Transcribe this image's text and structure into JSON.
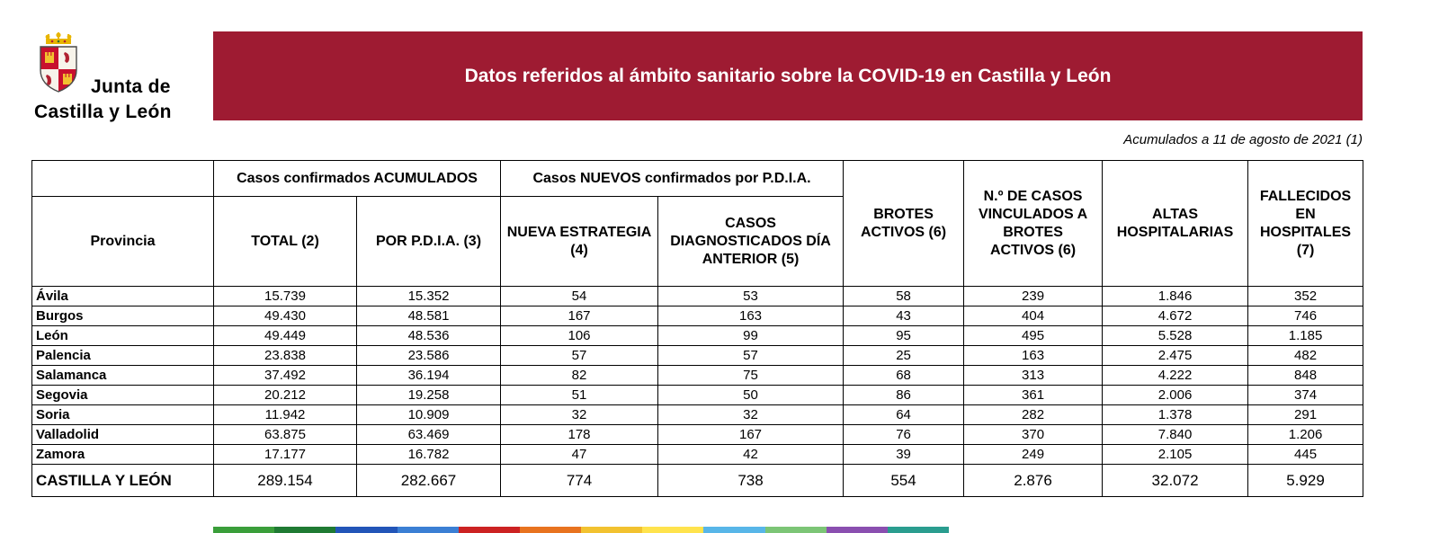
{
  "logo": {
    "line1": "Junta de",
    "line2": "Castilla y León"
  },
  "banner": {
    "title": "Datos referidos al ámbito sanitario sobre la COVID-19 en Castilla y León",
    "bg_color": "#9e1b32"
  },
  "date_note": "Acumulados a 11 de agosto de 2021 (1)",
  "table": {
    "group_headers": [
      "Casos confirmados ACUMULADOS",
      "Casos NUEVOS confirmados por P.D.I.A."
    ],
    "col_headers": {
      "provincia": "Provincia",
      "total": "TOTAL (2)",
      "por_pdia": "POR P.D.I.A. (3)",
      "nueva_estrategia": "NUEVA ESTRATEGIA (4)",
      "diagnosticados": "CASOS DIAGNOSTICADOS DÍA ANTERIOR (5)",
      "brotes_activos": "BROTES ACTIVOS (6)",
      "casos_vinculados": "N.º DE CASOS VINCULADOS A BROTES ACTIVOS (6)",
      "altas": "ALTAS HOSPITALARIAS",
      "fallecidos": "FALLECIDOS EN HOSPITALES (7)"
    },
    "rows": [
      {
        "provincia": "Ávila",
        "values": [
          "15.739",
          "15.352",
          "54",
          "53",
          "58",
          "239",
          "1.846",
          "352"
        ]
      },
      {
        "provincia": "Burgos",
        "values": [
          "49.430",
          "48.581",
          "167",
          "163",
          "43",
          "404",
          "4.672",
          "746"
        ]
      },
      {
        "provincia": "León",
        "values": [
          "49.449",
          "48.536",
          "106",
          "99",
          "95",
          "495",
          "5.528",
          "1.185"
        ]
      },
      {
        "provincia": "Palencia",
        "values": [
          "23.838",
          "23.586",
          "57",
          "57",
          "25",
          "163",
          "2.475",
          "482"
        ]
      },
      {
        "provincia": "Salamanca",
        "values": [
          "37.492",
          "36.194",
          "82",
          "75",
          "68",
          "313",
          "4.222",
          "848"
        ]
      },
      {
        "provincia": "Segovia",
        "values": [
          "20.212",
          "19.258",
          "51",
          "50",
          "86",
          "361",
          "2.006",
          "374"
        ]
      },
      {
        "provincia": "Soria",
        "values": [
          "11.942",
          "10.909",
          "32",
          "32",
          "64",
          "282",
          "1.378",
          "291"
        ]
      },
      {
        "provincia": "Valladolid",
        "values": [
          "63.875",
          "63.469",
          "178",
          "167",
          "76",
          "370",
          "7.840",
          "1.206"
        ]
      },
      {
        "provincia": "Zamora",
        "values": [
          "17.177",
          "16.782",
          "47",
          "42",
          "39",
          "249",
          "2.105",
          "445"
        ]
      }
    ],
    "totals": {
      "provincia": "CASTILLA Y LEÓN",
      "values": [
        "289.154",
        "282.667",
        "774",
        "738",
        "554",
        "2.876",
        "32.072",
        "5.929"
      ]
    }
  },
  "bottom_strip": {
    "colors": [
      "#3a9e3a",
      "#1f7a33",
      "#2255b8",
      "#3b7fd4",
      "#cc2222",
      "#e8731f",
      "#f2c230",
      "#ffe34d",
      "#58b6e8",
      "#7cc576",
      "#8a4fb0",
      "#2a9d8f"
    ]
  }
}
